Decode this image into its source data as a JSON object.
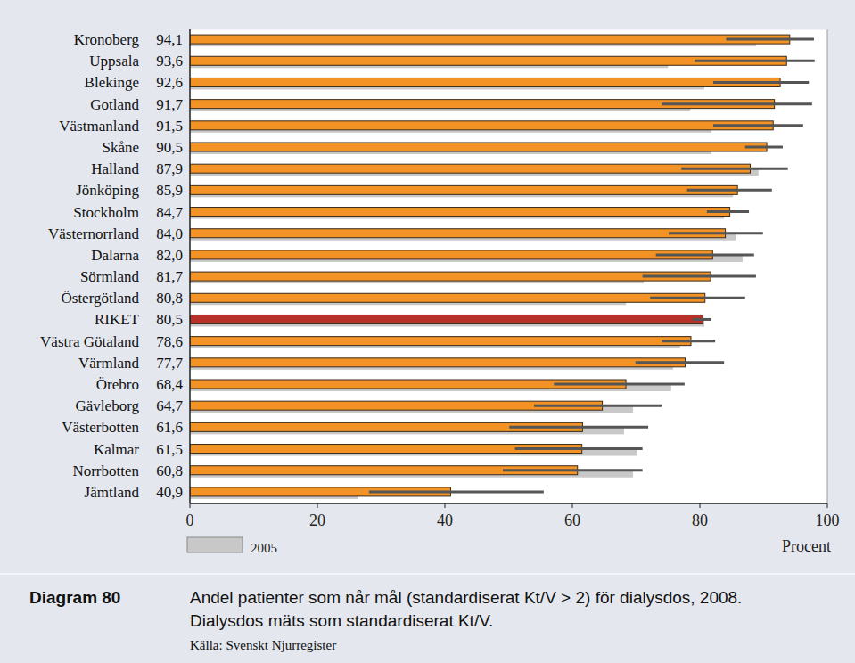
{
  "chart_data": {
    "type": "bar",
    "orientation": "horizontal",
    "title": "Diagram 80",
    "subtitle": "Andel patienter som når mål (standardiserat Kt/V > 2) för dialysdos, 2008.",
    "annotations": [
      "Dialysdos mäts som standardiserat Kt/V."
    ],
    "source": "Källa: Svenskt Njurregister",
    "x_label": "Procent",
    "categories": [
      "Kronoberg",
      "Uppsala",
      "Blekinge",
      "Gotland",
      "Västmanland",
      "Skåne",
      "Halland",
      "Jönköping",
      "Stockholm",
      "Västernorrland",
      "Dalarna",
      "Sörmland",
      "Östergötland",
      "RIKET",
      "Västra Götaland",
      "Värmland",
      "Örebro",
      "Gävleborg",
      "Västerbotten",
      "Kalmar",
      "Norrbotten",
      "Jämtland"
    ],
    "series": [
      {
        "name": "2005",
        "color": "#c8c8c8",
        "values": [
          88.8,
          75.0,
          80.7,
          78.5,
          81.8,
          81.8,
          89.2,
          85.2,
          83.8,
          85.6,
          86.7,
          71.2,
          68.4,
          80.7,
          76.9,
          75.8,
          75.5,
          69.5,
          68.1,
          70.1,
          69.5,
          26.3
        ]
      },
      {
        "color": "#f39325",
        "colors": [
          "#f39325",
          "#f39325",
          "#f39325",
          "#f39325",
          "#f39325",
          "#f39325",
          "#f39325",
          "#f39325",
          "#f39325",
          "#f39325",
          "#f39325",
          "#f39325",
          "#f39325",
          "#b8302a",
          "#f39325",
          "#f39325",
          "#f39325",
          "#f39325",
          "#f39325",
          "#f39325",
          "#f39325",
          "#f39325"
        ],
        "values": [
          94.1,
          93.6,
          92.6,
          91.7,
          91.5,
          90.5,
          87.9,
          85.9,
          84.7,
          84.0,
          82.0,
          81.7,
          80.8,
          80.5,
          78.6,
          77.7,
          68.4,
          64.7,
          61.6,
          61.5,
          60.8,
          40.9
        ],
        "value_labels": [
          "94,1",
          "93,6",
          "92,6",
          "91,7",
          "91,5",
          "90,5",
          "87,9",
          "85,9",
          "84,7",
          "84,0",
          "82,0",
          "81,7",
          "80,8",
          "80,5",
          "78,6",
          "77,7",
          "68,4",
          "64,7",
          "61,6",
          "61,5",
          "60,8",
          "40,9"
        ],
        "ci_low": [
          84.1,
          79.2,
          82.1,
          74.0,
          82.1,
          87.1,
          77.1,
          78.0,
          81.1,
          75.1,
          73.1,
          71.0,
          72.2,
          78.9,
          74.0,
          69.9,
          57.1,
          54.0,
          50.1,
          51.0,
          49.1,
          28.1
        ],
        "ci_high": [
          97.9,
          98.0,
          97.1,
          97.6,
          96.2,
          93.0,
          93.8,
          91.3,
          87.7,
          89.9,
          88.5,
          88.8,
          87.1,
          81.8,
          82.4,
          83.8,
          77.6,
          74.0,
          71.9,
          71.0,
          71.0,
          55.5
        ]
      }
    ],
    "xlim": [
      0,
      100
    ],
    "xticks": [
      0,
      20,
      40,
      60,
      80,
      100
    ],
    "grid": false,
    "legend": "bottom",
    "data_labels": true
  }
}
